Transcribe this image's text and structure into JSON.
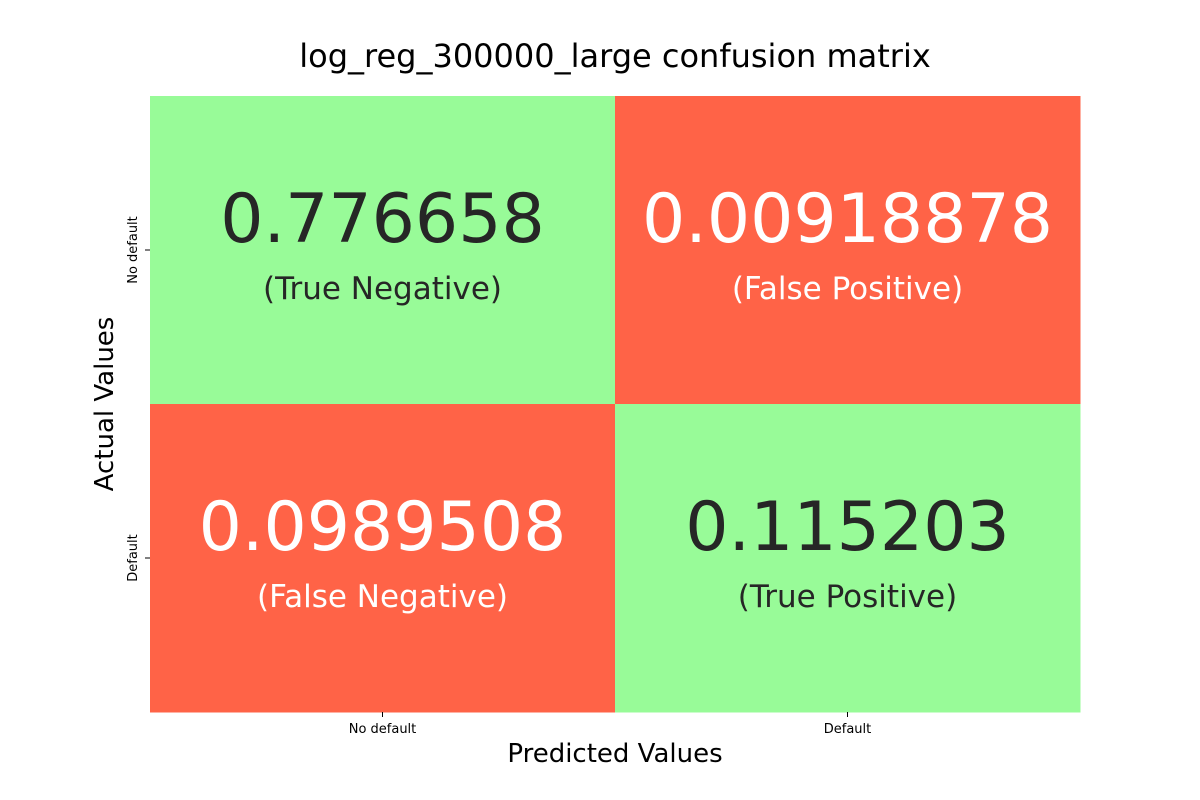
{
  "chart_data": {
    "type": "heatmap",
    "title": "log_reg_300000_large confusion matrix",
    "xlabel": "Predicted Values",
    "ylabel": "Actual Values",
    "x_categories": [
      "No default",
      "Default"
    ],
    "y_categories": [
      "No default",
      "Default"
    ],
    "cells": [
      {
        "row": 0,
        "col": 0,
        "value": "0.776658",
        "caption": "(True Negative)",
        "fill": "#98fb98",
        "text_color": "#262626"
      },
      {
        "row": 0,
        "col": 1,
        "value": "0.00918878",
        "caption": "(False Positive)",
        "fill": "#ff6347",
        "text_color": "#ffffff"
      },
      {
        "row": 1,
        "col": 0,
        "value": "0.0989508",
        "caption": "(False Negative)",
        "fill": "#ff6347",
        "text_color": "#ffffff"
      },
      {
        "row": 1,
        "col": 1,
        "value": "0.115203",
        "caption": "(True Positive)",
        "fill": "#98fb98",
        "text_color": "#262626"
      }
    ],
    "colorbar": false,
    "grid": false
  }
}
